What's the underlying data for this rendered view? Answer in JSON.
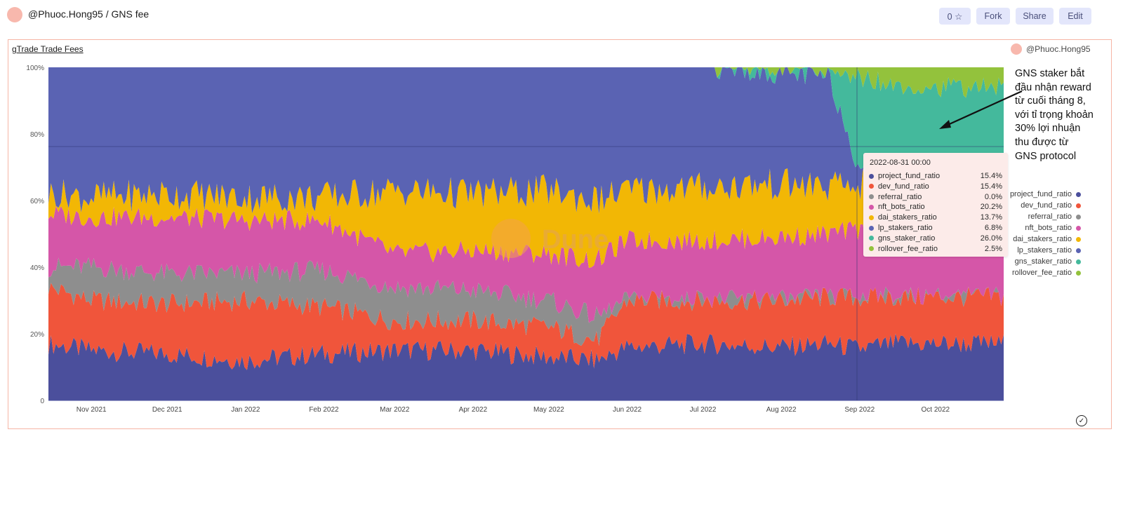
{
  "header": {
    "title": "@Phuoc.Hong95 / GNS fee",
    "star_count_label": "0 ☆",
    "fork_label": "Fork",
    "share_label": "Share",
    "edit_label": "Edit"
  },
  "card": {
    "title": "gTrade Trade Fees",
    "author": "@Phuoc.Hong95",
    "watermark": "Dune"
  },
  "annotation": {
    "text": "GNS staker bắt\nđầu nhận reward\ntừ cuối tháng 8,\nvới tỉ trọng khoản\n30% lợi nhuận\nthu được từ\nGNS protocol"
  },
  "tooltip": {
    "date": "2022-08-31 00:00",
    "rows": [
      {
        "name": "project_fund_ratio",
        "value": "15.4%",
        "color": "#4b4f9c"
      },
      {
        "name": "dev_fund_ratio",
        "value": "15.4%",
        "color": "#f0553b"
      },
      {
        "name": "referral_ratio",
        "value": "0.0%",
        "color": "#8e8e8e"
      },
      {
        "name": "nft_bots_ratio",
        "value": "20.2%",
        "color": "#d556a8"
      },
      {
        "name": "dai_stakers_ratio",
        "value": "13.7%",
        "color": "#f2b705"
      },
      {
        "name": "lp_stakers_ratio",
        "value": "6.8%",
        "color": "#5a63b3"
      },
      {
        "name": "gns_staker_ratio",
        "value": "26.0%",
        "color": "#44b99c"
      },
      {
        "name": "rollover_fee_ratio",
        "value": "2.5%",
        "color": "#93c23c"
      }
    ]
  },
  "chart_data": {
    "type": "area",
    "stacked": true,
    "normalized": true,
    "x_ticks": [
      "Nov 2021",
      "Dec 2021",
      "Jan 2022",
      "Feb 2022",
      "Mar 2022",
      "Apr 2022",
      "May 2022",
      "Jun 2022",
      "Jul 2022",
      "Aug 2022",
      "Sep 2022",
      "Oct 2022"
    ],
    "y_ticks": [
      "0",
      "20%",
      "40%",
      "60%",
      "80%",
      "100%"
    ],
    "ylim": [
      0,
      100
    ],
    "legend_position": "right",
    "series": [
      {
        "name": "project_fund_ratio",
        "color": "#4b4f9c"
      },
      {
        "name": "dev_fund_ratio",
        "color": "#f0553b"
      },
      {
        "name": "referral_ratio",
        "color": "#8e8e8e"
      },
      {
        "name": "nft_bots_ratio",
        "color": "#d556a8"
      },
      {
        "name": "dai_stakers_ratio",
        "color": "#f2b705"
      },
      {
        "name": "lp_stakers_ratio",
        "color": "#5a63b3"
      },
      {
        "name": "gns_staker_ratio",
        "color": "#44b99c"
      },
      {
        "name": "rollover_fee_ratio",
        "color": "#93c23c"
      }
    ],
    "x": [
      "2021-10-15",
      "2021-11-01",
      "2021-12-01",
      "2022-01-01",
      "2022-02-01",
      "2022-03-01",
      "2022-04-01",
      "2022-05-01",
      "2022-05-20",
      "2022-06-01",
      "2022-07-01",
      "2022-08-01",
      "2022-08-20",
      "2022-08-31",
      "2022-09-15",
      "2022-10-01",
      "2022-10-28"
    ],
    "boundaries_cumulative_percent": {
      "project_fund_ratio": [
        17,
        15,
        14,
        12,
        14,
        15,
        15,
        13,
        12,
        16,
        17,
        16,
        17,
        15.4,
        17,
        17,
        17
      ],
      "dev_fund_ratio": [
        34,
        30,
        29,
        30,
        28,
        24,
        24,
        22,
        18,
        30,
        30,
        30,
        31,
        30.8,
        31,
        31,
        31
      ],
      "referral_ratio": [
        40,
        40,
        38,
        38,
        39,
        34,
        33,
        30,
        25,
        30,
        30,
        30,
        31,
        30.8,
        31,
        31,
        31
      ],
      "nft_bots_ratio": [
        56,
        55,
        55,
        54,
        54,
        44,
        45,
        44,
        42,
        48,
        48,
        49,
        50,
        51.0,
        51,
        51,
        51
      ],
      "dai_stakers_ratio": [
        62,
        61,
        62,
        61,
        61,
        63,
        62,
        63,
        60,
        63,
        64,
        65,
        64,
        64.7,
        65,
        65,
        65
      ],
      "lp_stakers_ratio": [
        100,
        100,
        100,
        100,
        100,
        100,
        100,
        100,
        100,
        100,
        100,
        98,
        97,
        71.5,
        69,
        68,
        68
      ],
      "gns_staker_ratio": [
        100,
        100,
        100,
        100,
        100,
        100,
        100,
        100,
        100,
        100,
        100,
        98,
        97,
        97.5,
        95,
        94,
        94
      ],
      "rollover_fee_ratio": [
        100,
        100,
        100,
        100,
        100,
        100,
        100,
        100,
        100,
        100,
        100,
        100,
        100,
        100,
        100,
        100,
        100
      ]
    },
    "hover_date": "2022-08-31"
  }
}
